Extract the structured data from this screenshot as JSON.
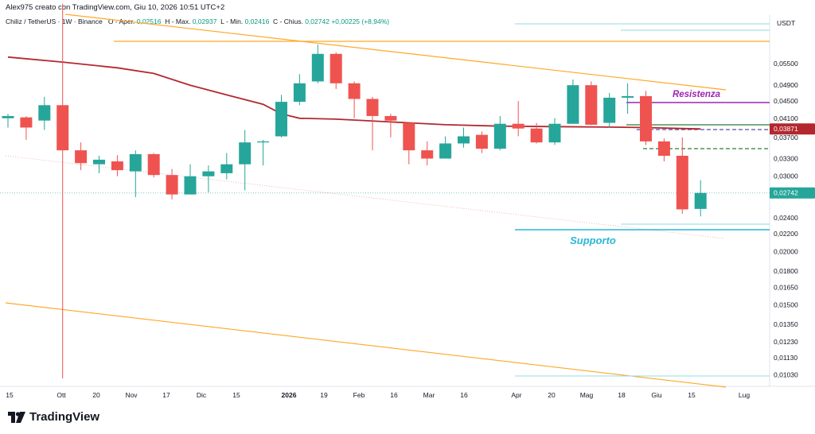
{
  "caption": "Alex975 creato con TradingView.com, Giu 10, 2026 10:51 UTC+2",
  "legend": {
    "symbol": "Chiliz / TetherUS · 1W · Binance",
    "open_label": "O - Aper.",
    "open": "0,02516",
    "high_label": "H - Max.",
    "high": "0,02937",
    "low_label": "L - Min.",
    "low": "0,02416",
    "close_label": "C - Chius.",
    "close": "0,02742",
    "change": "+0,00225 (+8,94%)"
  },
  "brand": "TradingView",
  "colors": {
    "up": "#26a69a",
    "down": "#ef5350",
    "ma": "#b2282e",
    "trendline": "#ffa726",
    "support": "#29b6d8",
    "resistance": "#9c27b0",
    "green_line": "#2e7d32"
  },
  "chart_data": {
    "type": "candlestick",
    "symbol": "CHZUSDT",
    "y_scale": "log",
    "currency_label": "USDT",
    "ylim": [
      0.0097,
      0.085
    ],
    "y_ticks": [
      "0,05500",
      "0,04900",
      "0,04500",
      "0,04100",
      "0,03700",
      "0,03300",
      "0,03000",
      "0,02400",
      "0,02200",
      "0,02000",
      "0,01800",
      "0,01650",
      "0,01500",
      "0,01350",
      "0,01230",
      "0,01130",
      "0,01030"
    ],
    "x_labels": [
      "15",
      "Ott",
      "20",
      "Nov",
      "17",
      "Dic",
      "15",
      "2026",
      "19",
      "Feb",
      "16",
      "Mar",
      "16",
      "Apr",
      "20",
      "Mag",
      "18",
      "Giu",
      "15",
      "Lug"
    ],
    "price_tags": [
      {
        "label": "0,03871",
        "value": 0.03871,
        "style": "ma"
      },
      {
        "label": "0,02742",
        "value": 0.02742,
        "style": "up"
      }
    ],
    "annotations": {
      "resistance": "Resistenza",
      "support": "Supporto"
    },
    "candles": [
      {
        "o": 0.041,
        "h": 0.042,
        "l": 0.039,
        "c": 0.0415
      },
      {
        "o": 0.0412,
        "h": 0.0415,
        "l": 0.0365,
        "c": 0.039
      },
      {
        "o": 0.0405,
        "h": 0.046,
        "l": 0.0385,
        "c": 0.044
      },
      {
        "o": 0.044,
        "h": 0.076,
        "l": 0.0101,
        "c": 0.0345
      },
      {
        "o": 0.0345,
        "h": 0.036,
        "l": 0.031,
        "c": 0.0322
      },
      {
        "o": 0.032,
        "h": 0.0335,
        "l": 0.0305,
        "c": 0.0328
      },
      {
        "o": 0.0325,
        "h": 0.0336,
        "l": 0.03,
        "c": 0.031
      },
      {
        "o": 0.0308,
        "h": 0.0345,
        "l": 0.0268,
        "c": 0.0338
      },
      {
        "o": 0.0338,
        "h": 0.034,
        "l": 0.0298,
        "c": 0.0302
      },
      {
        "o": 0.0302,
        "h": 0.0312,
        "l": 0.0265,
        "c": 0.0272
      },
      {
        "o": 0.0272,
        "h": 0.032,
        "l": 0.0272,
        "c": 0.03
      },
      {
        "o": 0.03,
        "h": 0.0318,
        "l": 0.0275,
        "c": 0.0308
      },
      {
        "o": 0.0305,
        "h": 0.034,
        "l": 0.0295,
        "c": 0.032
      },
      {
        "o": 0.032,
        "h": 0.0385,
        "l": 0.0278,
        "c": 0.036
      },
      {
        "o": 0.036,
        "h": 0.0365,
        "l": 0.0318,
        "c": 0.0362
      },
      {
        "o": 0.0372,
        "h": 0.0465,
        "l": 0.037,
        "c": 0.0448
      },
      {
        "o": 0.0448,
        "h": 0.052,
        "l": 0.044,
        "c": 0.0495
      },
      {
        "o": 0.05,
        "h": 0.061,
        "l": 0.0495,
        "c": 0.058
      },
      {
        "o": 0.058,
        "h": 0.0585,
        "l": 0.048,
        "c": 0.0495
      },
      {
        "o": 0.0495,
        "h": 0.05,
        "l": 0.041,
        "c": 0.0455
      },
      {
        "o": 0.0455,
        "h": 0.046,
        "l": 0.0345,
        "c": 0.0415
      },
      {
        "o": 0.0415,
        "h": 0.042,
        "l": 0.037,
        "c": 0.0405
      },
      {
        "o": 0.04,
        "h": 0.04,
        "l": 0.032,
        "c": 0.0345
      },
      {
        "o": 0.0345,
        "h": 0.0362,
        "l": 0.0318,
        "c": 0.033
      },
      {
        "o": 0.033,
        "h": 0.0372,
        "l": 0.033,
        "c": 0.0358
      },
      {
        "o": 0.0358,
        "h": 0.039,
        "l": 0.035,
        "c": 0.0372
      },
      {
        "o": 0.0375,
        "h": 0.0382,
        "l": 0.034,
        "c": 0.0348
      },
      {
        "o": 0.0348,
        "h": 0.0415,
        "l": 0.0345,
        "c": 0.0398
      },
      {
        "o": 0.0398,
        "h": 0.045,
        "l": 0.0372,
        "c": 0.0388
      },
      {
        "o": 0.0388,
        "h": 0.04,
        "l": 0.0358,
        "c": 0.036
      },
      {
        "o": 0.036,
        "h": 0.041,
        "l": 0.0355,
        "c": 0.0398
      },
      {
        "o": 0.0398,
        "h": 0.0505,
        "l": 0.0398,
        "c": 0.049
      },
      {
        "o": 0.049,
        "h": 0.05,
        "l": 0.0395,
        "c": 0.0396
      },
      {
        "o": 0.04,
        "h": 0.047,
        "l": 0.039,
        "c": 0.0458
      },
      {
        "o": 0.0458,
        "h": 0.0495,
        "l": 0.042,
        "c": 0.0462
      },
      {
        "o": 0.0462,
        "h": 0.0475,
        "l": 0.0355,
        "c": 0.0362
      },
      {
        "o": 0.0362,
        "h": 0.0368,
        "l": 0.0325,
        "c": 0.0335
      },
      {
        "o": 0.0335,
        "h": 0.037,
        "l": 0.0245,
        "c": 0.0251
      },
      {
        "o": 0.02516,
        "h": 0.02937,
        "l": 0.02416,
        "c": 0.02742
      }
    ],
    "moving_average": [
      [
        0,
        0.057
      ],
      [
        3,
        0.0555
      ],
      [
        6,
        0.0538
      ],
      [
        8,
        0.0522
      ],
      [
        10,
        0.049
      ],
      [
        12,
        0.0465
      ],
      [
        14,
        0.0442
      ],
      [
        15,
        0.042
      ],
      [
        16,
        0.041
      ],
      [
        18,
        0.0408
      ],
      [
        21,
        0.0402
      ],
      [
        24,
        0.0396
      ],
      [
        27,
        0.0393
      ],
      [
        30,
        0.0392
      ],
      [
        33,
        0.0391
      ],
      [
        35,
        0.039
      ],
      [
        37,
        0.0388
      ],
      [
        38,
        0.03871
      ]
    ]
  }
}
